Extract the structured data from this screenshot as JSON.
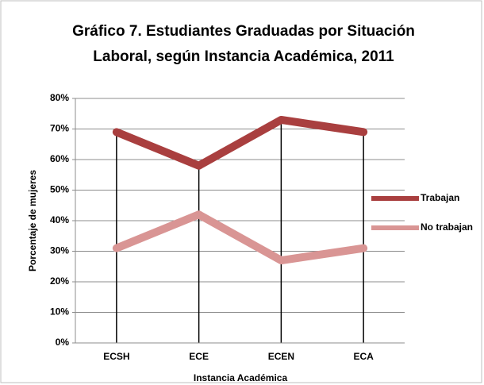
{
  "chart_data": {
    "type": "line",
    "title": "Gráfico 7. Estudiantes Graduadas por Situación Laboral, según Instancia Académica, 2011",
    "x_label": "Instancia Académica",
    "y_label": "Porcentaje de mujeres",
    "categories": [
      "ECSH",
      "ECE",
      "ECEN",
      "ECA"
    ],
    "series": [
      {
        "name": "Trabajan",
        "color": "#a93f3f",
        "values": [
          69,
          58,
          73,
          69
        ]
      },
      {
        "name": "No trabajan",
        "color": "#d99594",
        "values": [
          31,
          42,
          27,
          31
        ]
      }
    ],
    "ylim": [
      0,
      80
    ],
    "yticks": [
      {
        "value": 0,
        "label": "0%"
      },
      {
        "value": 10,
        "label": "10%"
      },
      {
        "value": 20,
        "label": "20%"
      },
      {
        "value": 30,
        "label": "30%"
      },
      {
        "value": 40,
        "label": "40%"
      },
      {
        "value": 50,
        "label": "50%"
      },
      {
        "value": 60,
        "label": "60%"
      },
      {
        "value": 70,
        "label": "70%"
      },
      {
        "value": 80,
        "label": "80%"
      }
    ],
    "grid": true,
    "legend": "right"
  }
}
